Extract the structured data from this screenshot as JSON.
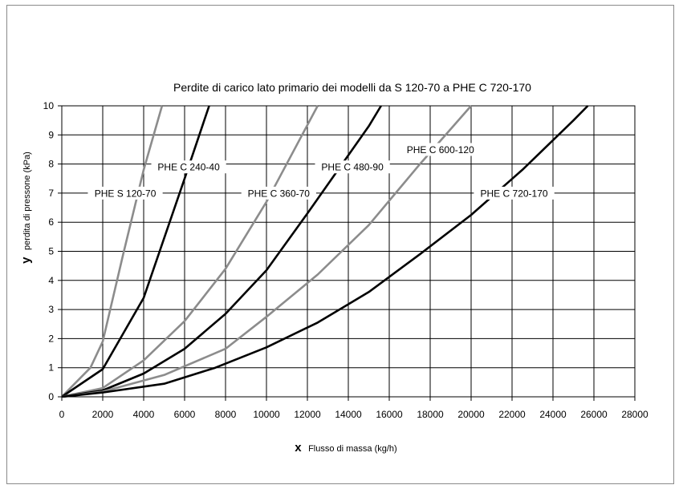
{
  "chart_data": {
    "type": "line",
    "title": "Perdite di carico lato primario dei modelli da S 120-70 a PHE C 720-170",
    "xlabel_symbol": "x",
    "xlabel": "Flusso di massa (kg/h)",
    "ylabel_symbol": "y",
    "ylabel": "perdita di pressone (kPa)",
    "xlim": [
      0,
      28000
    ],
    "ylim": [
      0,
      10
    ],
    "xticks": [
      0,
      2000,
      4000,
      6000,
      8000,
      10000,
      12000,
      14000,
      16000,
      18000,
      20000,
      22000,
      24000,
      26000,
      28000
    ],
    "yticks": [
      0,
      1,
      2,
      3,
      4,
      5,
      6,
      7,
      8,
      9,
      10
    ],
    "grid": true,
    "legend": "inline labels",
    "series": [
      {
        "name": "PHE S 120-70",
        "color": "#8c8c8c",
        "points": [
          [
            0,
            0
          ],
          [
            1400,
            1
          ],
          [
            2000,
            1.9
          ],
          [
            3000,
            4.9
          ],
          [
            4000,
            7.8
          ],
          [
            4900,
            10
          ]
        ]
      },
      {
        "name": "PHE C 240-40",
        "color": "#000000",
        "points": [
          [
            0,
            0
          ],
          [
            2000,
            0.95
          ],
          [
            4000,
            3.4
          ],
          [
            6000,
            7.5
          ],
          [
            7200,
            10
          ]
        ]
      },
      {
        "name": "PHE C 360-70",
        "color": "#8c8c8c",
        "points": [
          [
            0,
            0
          ],
          [
            2000,
            0.3
          ],
          [
            4000,
            1.25
          ],
          [
            6000,
            2.6
          ],
          [
            8000,
            4.4
          ],
          [
            10000,
            6.7
          ],
          [
            12500,
            10
          ]
        ]
      },
      {
        "name": "PHE C 480-90",
        "color": "#000000",
        "points": [
          [
            0,
            0
          ],
          [
            2000,
            0.22
          ],
          [
            4000,
            0.8
          ],
          [
            6000,
            1.65
          ],
          [
            8000,
            2.85
          ],
          [
            10000,
            4.35
          ],
          [
            12000,
            6.3
          ],
          [
            15000,
            9.3
          ],
          [
            15600,
            10
          ]
        ]
      },
      {
        "name": "PHE C 600-120",
        "color": "#8c8c8c",
        "points": [
          [
            0,
            0
          ],
          [
            2000,
            0.18
          ],
          [
            5000,
            0.75
          ],
          [
            8000,
            1.65
          ],
          [
            10000,
            2.75
          ],
          [
            12500,
            4.2
          ],
          [
            15000,
            5.9
          ],
          [
            17500,
            8
          ],
          [
            20000,
            10
          ]
        ]
      },
      {
        "name": "PHE C 720-170",
        "color": "#000000",
        "points": [
          [
            0,
            0
          ],
          [
            2000,
            0.15
          ],
          [
            5000,
            0.45
          ],
          [
            7500,
            1
          ],
          [
            10000,
            1.7
          ],
          [
            12500,
            2.55
          ],
          [
            15000,
            3.6
          ],
          [
            17500,
            4.9
          ],
          [
            20000,
            6.25
          ],
          [
            22500,
            7.8
          ],
          [
            25000,
            9.5
          ],
          [
            25700,
            10
          ]
        ]
      }
    ],
    "annotations": [
      {
        "text": "PHE S 120-70",
        "x": 3100,
        "y": 7
      },
      {
        "text": "PHE C 240-40",
        "x": 6200,
        "y": 7.9
      },
      {
        "text": "PHE C 360-70",
        "x": 10600,
        "y": 7
      },
      {
        "text": "PHE C 480-90",
        "x": 14200,
        "y": 7.9
      },
      {
        "text": "PHE C 600-120",
        "x": 18500,
        "y": 8.5
      },
      {
        "text": "PHE C 720-170",
        "x": 22100,
        "y": 7
      }
    ]
  }
}
